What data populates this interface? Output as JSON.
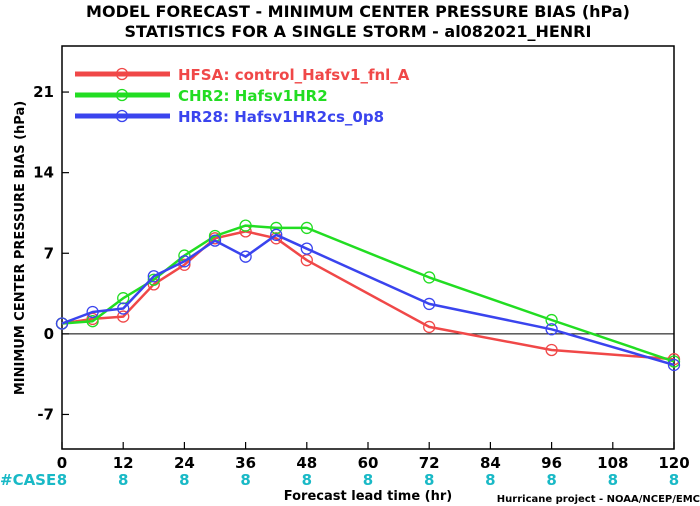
{
  "chart_data": {
    "type": "line",
    "title": "MODEL FORECAST - MINIMUM CENTER PRESSURE BIAS (hPa)",
    "subtitle": "STATISTICS FOR A SINGLE STORM - al082021_HENRI",
    "xlabel": "Forecast lead time (hr)",
    "ylabel": "MINIMUM CENTER PRESSURE BIAS (hPa)",
    "xlim": [
      0,
      120
    ],
    "ylim": [
      -10,
      25
    ],
    "xticks": [
      0,
      12,
      24,
      36,
      48,
      60,
      72,
      84,
      96,
      108,
      120
    ],
    "yticks": [
      -7,
      0,
      7,
      14,
      21
    ],
    "zero_line": true,
    "grid": false,
    "legend_position": "top-left",
    "case_label": "#CASE",
    "case_counts": [
      8,
      8,
      8,
      8,
      8,
      8,
      8,
      8,
      8,
      8,
      8
    ],
    "credit": "Hurricane project - NOAA/NCEP/EMC",
    "series": [
      {
        "name": "HFSA: control_Hafsv1_fnl_A",
        "color": "#f04848",
        "x": [
          0,
          6,
          12,
          18,
          24,
          30,
          36,
          42,
          48,
          72,
          96,
          120
        ],
        "y": [
          0.9,
          1.3,
          1.5,
          4.3,
          6.0,
          8.3,
          8.9,
          8.3,
          6.4,
          0.6,
          -1.4,
          -2.2
        ]
      },
      {
        "name": "CHR2: Hafsv1HR2",
        "color": "#22dd22",
        "x": [
          0,
          6,
          12,
          18,
          24,
          30,
          36,
          42,
          48,
          72,
          96,
          120
        ],
        "y": [
          0.9,
          1.1,
          3.1,
          4.7,
          6.8,
          8.5,
          9.4,
          9.2,
          9.2,
          4.9,
          1.2,
          -2.4
        ]
      },
      {
        "name": "HR28: Hafsv1HR2cs_0p8",
        "color": "#3a44ee",
        "x": [
          0,
          6,
          12,
          18,
          24,
          30,
          36,
          42,
          48,
          72,
          96,
          120
        ],
        "y": [
          0.9,
          1.9,
          2.2,
          5.0,
          6.3,
          8.1,
          6.7,
          8.6,
          7.4,
          2.6,
          0.4,
          -2.7
        ]
      }
    ]
  }
}
